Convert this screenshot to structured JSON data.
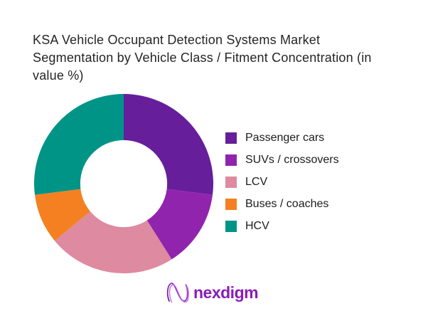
{
  "chart_data": {
    "type": "pie",
    "subtype": "donut",
    "title": "KSA Vehicle Occupant Detection Systems Market Segmentation by Vehicle Class / Fitment Concentration (in value %)",
    "categories": [
      "Passenger cars",
      "SUVs / crossovers",
      "LCV",
      "Buses / coaches",
      "HCV"
    ],
    "values": [
      27,
      14,
      23,
      9,
      27
    ],
    "unit": "percent of value",
    "colors": [
      "#661E9B",
      "#9124AD",
      "#DE8AA0",
      "#F58021",
      "#009487"
    ],
    "start_angle_deg": 0,
    "direction": "clockwise",
    "inner_radius_ratio": 0.485,
    "legend_position": "right",
    "data_labels": "none"
  },
  "legend": {
    "items": [
      {
        "label": "Passenger cars",
        "color": "#661E9B"
      },
      {
        "label": "SUVs / crossovers",
        "color": "#9124AD"
      },
      {
        "label": "LCV",
        "color": "#DE8AA0"
      },
      {
        "label": "Buses / coaches",
        "color": "#F58021"
      },
      {
        "label": "HCV",
        "color": "#009487"
      }
    ]
  },
  "logo": {
    "brand": "nexdigm",
    "word_color": "#8A1CB8",
    "icon": "nexdigm-n-wave-icon",
    "icon_colors": [
      "#7B1FA2",
      "#C05CE8"
    ]
  }
}
